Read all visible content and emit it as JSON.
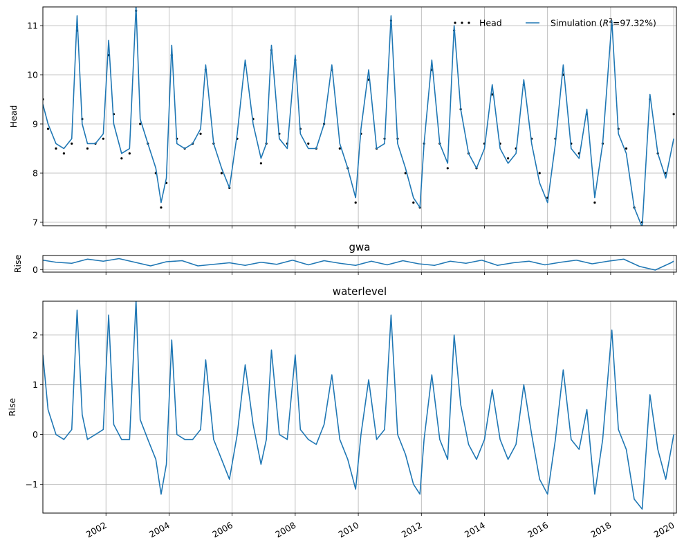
{
  "chart_data": [
    {
      "type": "line",
      "id": "head_panel",
      "title": "",
      "xlabel": "",
      "ylabel": "Head",
      "ylim": [
        6.93,
        11.38
      ],
      "yticks": [
        7,
        8,
        9,
        10,
        11
      ],
      "grid": true,
      "legend": {
        "placement": "top-right",
        "ncol": 2
      },
      "series": [
        {
          "name": "Head",
          "style": "points",
          "color": "#000000",
          "x": [
            "2000-01-01",
            "2000-03-01",
            "2000-06-01",
            "2000-09-01",
            "2000-12-01",
            "2001-02-01",
            "2001-04-01",
            "2001-06-01",
            "2001-09-01",
            "2001-12-01",
            "2002-02-01",
            "2002-04-01",
            "2002-07-01",
            "2002-10-01",
            "2002-12-15",
            "2003-02-01",
            "2003-05-01",
            "2003-08-01",
            "2003-10-01",
            "2003-12-01",
            "2004-02-01",
            "2004-04-01",
            "2004-07-01",
            "2004-10-01",
            "2005-01-01",
            "2005-03-01",
            "2005-06-01",
            "2005-09-01",
            "2005-12-01",
            "2006-03-01",
            "2006-06-01",
            "2006-09-01",
            "2006-12-01",
            "2007-02-01",
            "2007-04-01",
            "2007-07-01",
            "2007-10-01",
            "2008-01-01",
            "2008-03-01",
            "2008-06-01",
            "2008-09-01",
            "2008-12-01",
            "2009-03-01",
            "2009-06-01",
            "2009-09-01",
            "2009-12-01",
            "2010-02-01",
            "2010-05-01",
            "2010-08-01",
            "2010-11-01",
            "2011-01-15",
            "2011-04-01",
            "2011-07-01",
            "2011-10-01",
            "2011-12-15",
            "2012-02-01",
            "2012-05-01",
            "2012-08-01",
            "2012-11-01",
            "2013-01-15",
            "2013-04-01",
            "2013-07-01",
            "2013-10-01",
            "2014-01-01",
            "2014-04-01",
            "2014-07-01",
            "2014-10-01",
            "2015-01-01",
            "2015-04-01",
            "2015-07-01",
            "2015-10-01",
            "2016-01-01",
            "2016-04-01",
            "2016-07-01",
            "2016-10-01",
            "2017-01-01",
            "2017-04-01",
            "2017-07-01",
            "2017-10-01",
            "2018-01-15",
            "2018-04-01",
            "2018-07-01",
            "2018-10-01",
            "2019-01-01",
            "2019-04-01",
            "2019-07-01",
            "2019-10-01",
            "2020-01-01"
          ],
          "y": [
            9.5,
            8.9,
            8.5,
            8.4,
            8.6,
            10.9,
            9.1,
            8.5,
            8.6,
            8.7,
            10.4,
            9.2,
            8.3,
            8.4,
            11.3,
            9.0,
            8.6,
            8.0,
            7.3,
            7.8,
            10.4,
            8.7,
            8.5,
            8.6,
            8.8,
            10.1,
            8.6,
            8.0,
            7.7,
            8.7,
            10.2,
            9.1,
            8.2,
            8.6,
            10.5,
            8.8,
            8.6,
            10.3,
            8.9,
            8.6,
            8.5,
            9.0,
            10.1,
            8.5,
            8.1,
            7.4,
            8.8,
            9.9,
            8.5,
            8.7,
            11.1,
            8.7,
            8.0,
            7.4,
            7.3,
            8.6,
            10.1,
            8.6,
            8.1,
            10.9,
            9.3,
            8.4,
            8.1,
            8.6,
            9.6,
            8.6,
            8.3,
            8.5,
            9.8,
            8.7,
            8.0,
            7.5,
            8.7,
            10.0,
            8.6,
            8.4,
            9.2,
            7.4,
            8.6,
            11.0,
            8.9,
            8.5,
            7.3,
            7.0,
            9.5,
            8.4,
            8.0,
            9.2
          ]
        },
        {
          "name": "Simulation ($R^2$=97.32%)",
          "legend_label": {
            "prefix": "Simulation (",
            "math_r": "R",
            "math_sup": "2",
            "suffix": "=97.32%)"
          },
          "style": "line",
          "color": "#1f77b4",
          "x": [
            "2000-01-01",
            "2000-03-01",
            "2000-06-01",
            "2000-09-01",
            "2000-12-01",
            "2001-02-01",
            "2001-04-01",
            "2001-06-01",
            "2001-09-01",
            "2001-12-01",
            "2002-02-01",
            "2002-04-01",
            "2002-07-01",
            "2002-10-01",
            "2002-12-15",
            "2003-02-01",
            "2003-05-01",
            "2003-08-01",
            "2003-10-01",
            "2003-12-01",
            "2004-02-01",
            "2004-04-01",
            "2004-07-01",
            "2004-10-01",
            "2005-01-01",
            "2005-03-01",
            "2005-06-01",
            "2005-09-01",
            "2005-12-01",
            "2006-03-01",
            "2006-06-01",
            "2006-09-01",
            "2006-12-01",
            "2007-02-01",
            "2007-04-01",
            "2007-07-01",
            "2007-10-01",
            "2008-01-01",
            "2008-03-01",
            "2008-06-01",
            "2008-09-01",
            "2008-12-01",
            "2009-03-01",
            "2009-06-01",
            "2009-09-01",
            "2009-12-01",
            "2010-02-01",
            "2010-05-01",
            "2010-08-01",
            "2010-11-01",
            "2011-01-15",
            "2011-04-01",
            "2011-07-01",
            "2011-10-01",
            "2011-12-15",
            "2012-02-01",
            "2012-05-01",
            "2012-08-01",
            "2012-11-01",
            "2013-01-15",
            "2013-04-01",
            "2013-07-01",
            "2013-10-01",
            "2014-01-01",
            "2014-04-01",
            "2014-07-01",
            "2014-10-01",
            "2015-01-01",
            "2015-04-01",
            "2015-07-01",
            "2015-10-01",
            "2016-01-01",
            "2016-04-01",
            "2016-07-01",
            "2016-10-01",
            "2017-01-01",
            "2017-04-01",
            "2017-07-01",
            "2017-10-01",
            "2018-01-15",
            "2018-04-01",
            "2018-07-01",
            "2018-10-01",
            "2019-01-01",
            "2019-04-01",
            "2019-07-01",
            "2019-10-01",
            "2020-01-01"
          ],
          "y": [
            9.4,
            9.0,
            8.6,
            8.5,
            8.7,
            11.2,
            9.0,
            8.6,
            8.6,
            8.8,
            10.7,
            9.0,
            8.4,
            8.5,
            11.4,
            9.1,
            8.6,
            8.1,
            7.4,
            7.9,
            10.6,
            8.6,
            8.5,
            8.6,
            8.9,
            10.2,
            8.6,
            8.1,
            7.7,
            8.8,
            10.3,
            9.0,
            8.3,
            8.6,
            10.6,
            8.7,
            8.5,
            10.4,
            8.8,
            8.5,
            8.5,
            9.0,
            10.2,
            8.6,
            8.1,
            7.5,
            8.9,
            10.1,
            8.5,
            8.6,
            11.2,
            8.6,
            8.1,
            7.5,
            7.3,
            8.6,
            10.3,
            8.6,
            8.2,
            11.0,
            9.3,
            8.4,
            8.1,
            8.5,
            9.8,
            8.5,
            8.2,
            8.4,
            9.9,
            8.6,
            7.8,
            7.4,
            8.6,
            10.2,
            8.5,
            8.3,
            9.3,
            7.5,
            8.6,
            11.1,
            8.8,
            8.4,
            7.3,
            6.9,
            9.6,
            8.4,
            7.9,
            8.7
          ]
        }
      ]
    },
    {
      "type": "line",
      "id": "gwa_panel",
      "title": "gwa",
      "xlabel": "",
      "ylabel": "Rise",
      "ylim": [
        -0.05,
        0.27
      ],
      "yticks": [
        0
      ],
      "grid": true,
      "series": [
        {
          "name": "",
          "style": "line",
          "color": "#1f77b4",
          "x": [
            "2000-01-01",
            "2000-06-01",
            "2000-12-01",
            "2001-06-01",
            "2001-12-01",
            "2002-06-01",
            "2002-12-01",
            "2003-06-01",
            "2003-12-01",
            "2004-06-01",
            "2004-12-01",
            "2005-06-01",
            "2005-12-01",
            "2006-06-01",
            "2006-12-01",
            "2007-06-01",
            "2007-12-01",
            "2008-06-01",
            "2008-12-01",
            "2009-06-01",
            "2009-12-01",
            "2010-06-01",
            "2010-12-01",
            "2011-06-01",
            "2011-12-01",
            "2012-06-01",
            "2012-12-01",
            "2013-06-01",
            "2013-12-01",
            "2014-06-01",
            "2014-12-01",
            "2015-06-01",
            "2015-12-01",
            "2016-06-01",
            "2016-12-01",
            "2017-06-01",
            "2017-12-01",
            "2018-06-01",
            "2018-12-01",
            "2019-06-01",
            "2019-12-01",
            "2020-01-01"
          ],
          "y": [
            0.18,
            0.14,
            0.12,
            0.2,
            0.16,
            0.21,
            0.14,
            0.07,
            0.15,
            0.17,
            0.07,
            0.1,
            0.13,
            0.08,
            0.14,
            0.1,
            0.18,
            0.09,
            0.17,
            0.12,
            0.08,
            0.16,
            0.09,
            0.17,
            0.11,
            0.08,
            0.16,
            0.12,
            0.18,
            0.08,
            0.13,
            0.16,
            0.09,
            0.14,
            0.18,
            0.11,
            0.16,
            0.2,
            0.06,
            -0.01,
            0.13,
            0.16
          ]
        }
      ]
    },
    {
      "type": "line",
      "id": "waterlevel_panel",
      "title": "waterlevel",
      "xlabel": "",
      "ylabel": "Rise",
      "ylim": [
        -1.58,
        2.68
      ],
      "yticks": [
        -1,
        0,
        1,
        2
      ],
      "grid": true,
      "series": [
        {
          "name": "",
          "style": "line",
          "color": "#1f77b4",
          "x": [
            "2000-01-01",
            "2000-03-01",
            "2000-06-01",
            "2000-09-01",
            "2000-12-01",
            "2001-02-01",
            "2001-04-01",
            "2001-06-01",
            "2001-09-01",
            "2001-12-01",
            "2002-02-01",
            "2002-04-01",
            "2002-07-01",
            "2002-10-01",
            "2002-12-15",
            "2003-02-01",
            "2003-05-01",
            "2003-08-01",
            "2003-10-01",
            "2003-12-01",
            "2004-02-01",
            "2004-04-01",
            "2004-07-01",
            "2004-10-01",
            "2005-01-01",
            "2005-03-01",
            "2005-06-01",
            "2005-09-01",
            "2005-12-01",
            "2006-03-01",
            "2006-06-01",
            "2006-09-01",
            "2006-12-01",
            "2007-02-01",
            "2007-04-01",
            "2007-07-01",
            "2007-10-01",
            "2008-01-01",
            "2008-03-01",
            "2008-06-01",
            "2008-09-01",
            "2008-12-01",
            "2009-03-01",
            "2009-06-01",
            "2009-09-01",
            "2009-12-01",
            "2010-02-01",
            "2010-05-01",
            "2010-08-01",
            "2010-11-01",
            "2011-01-15",
            "2011-04-01",
            "2011-07-01",
            "2011-10-01",
            "2011-12-15",
            "2012-02-01",
            "2012-05-01",
            "2012-08-01",
            "2012-11-01",
            "2013-01-15",
            "2013-04-01",
            "2013-07-01",
            "2013-10-01",
            "2014-01-01",
            "2014-04-01",
            "2014-07-01",
            "2014-10-01",
            "2015-01-01",
            "2015-04-01",
            "2015-07-01",
            "2015-10-01",
            "2016-01-01",
            "2016-04-01",
            "2016-07-01",
            "2016-10-01",
            "2017-01-01",
            "2017-04-01",
            "2017-07-01",
            "2017-10-01",
            "2018-01-15",
            "2018-04-01",
            "2018-07-01",
            "2018-10-01",
            "2019-01-01",
            "2019-04-01",
            "2019-07-01",
            "2019-10-01",
            "2020-01-01"
          ],
          "y": [
            1.6,
            0.5,
            0.0,
            -0.1,
            0.1,
            2.5,
            0.4,
            -0.1,
            0.0,
            0.1,
            2.4,
            0.2,
            -0.1,
            -0.1,
            2.7,
            0.3,
            -0.1,
            -0.5,
            -1.2,
            -0.6,
            1.9,
            0.0,
            -0.1,
            -0.1,
            0.1,
            1.5,
            -0.1,
            -0.5,
            -0.9,
            0.0,
            1.4,
            0.2,
            -0.6,
            -0.1,
            1.7,
            0.0,
            -0.1,
            1.6,
            0.1,
            -0.1,
            -0.2,
            0.2,
            1.2,
            -0.1,
            -0.5,
            -1.1,
            0.0,
            1.1,
            -0.1,
            0.1,
            2.4,
            0.0,
            -0.4,
            -1.0,
            -1.2,
            -0.1,
            1.2,
            -0.1,
            -0.5,
            2.0,
            0.6,
            -0.2,
            -0.5,
            -0.1,
            0.9,
            -0.1,
            -0.5,
            -0.2,
            1.0,
            0.0,
            -0.9,
            -1.2,
            -0.1,
            1.3,
            -0.1,
            -0.3,
            0.5,
            -1.2,
            -0.1,
            2.1,
            0.1,
            -0.3,
            -1.3,
            -1.5,
            0.8,
            -0.3,
            -0.9,
            0.0
          ]
        }
      ]
    }
  ],
  "x_axis": {
    "range": [
      "2000-01-01",
      "2020-02-01"
    ],
    "ticks": [
      "2002-01-01",
      "2004-01-01",
      "2006-01-01",
      "2008-01-01",
      "2010-01-01",
      "2012-01-01",
      "2014-01-01",
      "2016-01-01",
      "2018-01-01",
      "2020-01-01"
    ],
    "tick_labels": [
      "2002",
      "2004",
      "2006",
      "2008",
      "2010",
      "2012",
      "2014",
      "2016",
      "2018",
      "2020"
    ]
  }
}
